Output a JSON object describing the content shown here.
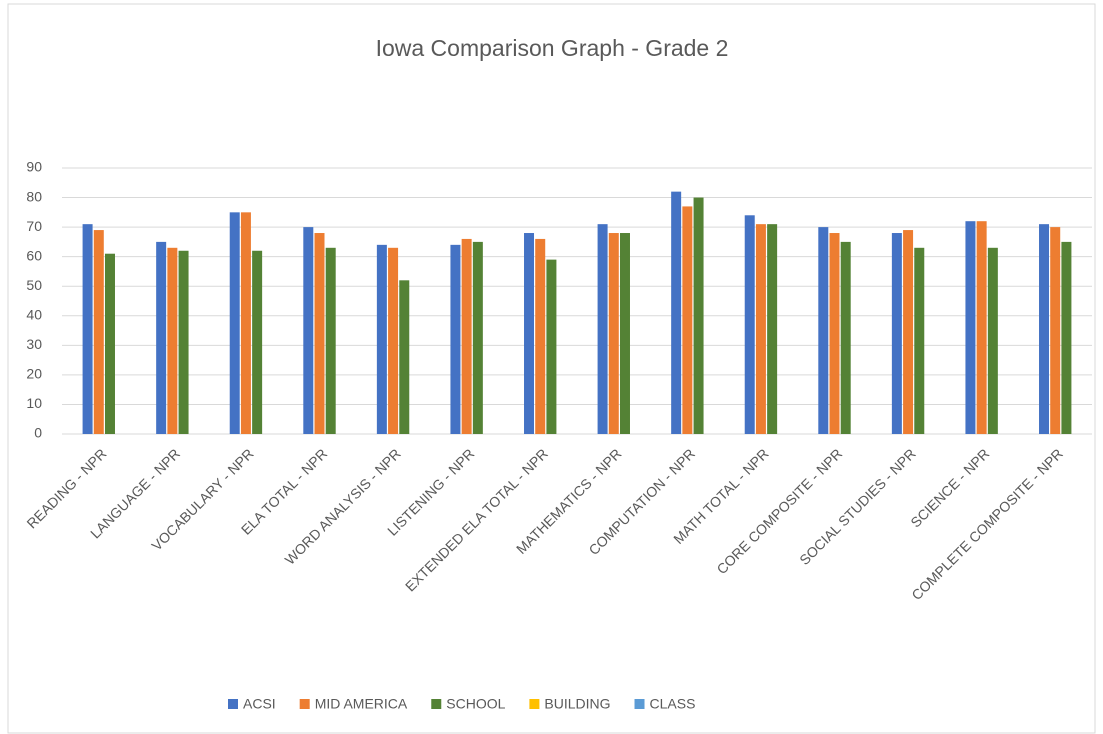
{
  "chart_data": {
    "type": "bar",
    "title": "Iowa Comparison Graph - Grade 2",
    "categories": [
      "READING - NPR",
      "LANGUAGE - NPR",
      "VOCABULARY - NPR",
      "ELA TOTAL - NPR",
      "WORD ANALYSIS - NPR",
      "LISTENING - NPR",
      "EXTENDED ELA TOTAL - NPR",
      "MATHEMATICS - NPR",
      "COMPUTATION - NPR",
      "MATH TOTAL - NPR",
      "CORE COMPOSITE - NPR",
      "SOCIAL STUDIES - NPR",
      "SCIENCE - NPR",
      "COMPLETE COMPOSITE - NPR"
    ],
    "series": [
      {
        "name": "ACSI",
        "color": "#4472c4",
        "values": [
          71,
          65,
          75,
          70,
          64,
          64,
          68,
          71,
          82,
          74,
          70,
          68,
          72,
          71
        ]
      },
      {
        "name": "MID AMERICA",
        "color": "#ed7d31",
        "values": [
          69,
          63,
          75,
          68,
          63,
          66,
          66,
          68,
          77,
          71,
          68,
          69,
          72,
          70
        ]
      },
      {
        "name": "SCHOOL",
        "color": "#548235",
        "values": [
          61,
          62,
          62,
          63,
          52,
          65,
          59,
          68,
          80,
          71,
          65,
          63,
          63,
          65
        ]
      },
      {
        "name": "BUILDING",
        "color": "#ffc000",
        "values": [
          null,
          null,
          null,
          null,
          null,
          null,
          null,
          null,
          null,
          null,
          null,
          null,
          null,
          null
        ]
      },
      {
        "name": "CLASS",
        "color": "#5b9bd5",
        "values": [
          null,
          null,
          null,
          null,
          null,
          null,
          null,
          null,
          null,
          null,
          null,
          null,
          null,
          null
        ]
      }
    ],
    "ylim": [
      0,
      90
    ],
    "yticks": [
      0,
      10,
      20,
      30,
      40,
      50,
      60,
      70,
      80,
      90
    ],
    "grid": true,
    "legend": "bottom"
  }
}
